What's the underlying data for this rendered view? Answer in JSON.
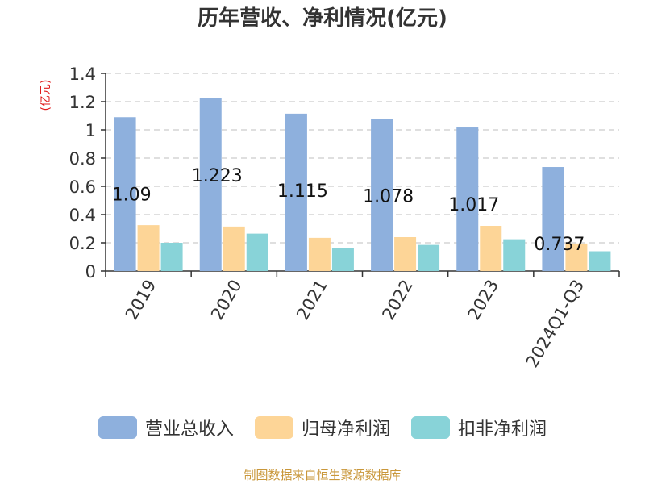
{
  "chart_data": {
    "type": "bar",
    "title": "历年营收、净利情况(亿元)",
    "unit_label": "(亿元)",
    "categories": [
      "2019",
      "2020",
      "2021",
      "2022",
      "2023",
      "2024Q1-Q3"
    ],
    "series": [
      {
        "name": "营业总收入",
        "color": "#8eb0dd",
        "values": [
          1.09,
          1.223,
          1.115,
          1.078,
          1.017,
          0.737
        ],
        "labels": [
          "1.09",
          "1.223",
          "1.115",
          "1.078",
          "1.017",
          "0.737"
        ]
      },
      {
        "name": "归母净利润",
        "color": "#fdd597",
        "values": [
          0.325,
          0.315,
          0.235,
          0.24,
          0.32,
          0.195
        ]
      },
      {
        "name": "扣非净利润",
        "color": "#88d3d8",
        "values": [
          0.2,
          0.265,
          0.165,
          0.185,
          0.225,
          0.14
        ]
      }
    ],
    "y_ticks": [
      "0",
      "0.2",
      "0.4",
      "0.6",
      "0.8",
      "1",
      "1.2",
      "1.4"
    ],
    "ylim": [
      0,
      1.4
    ],
    "grid": "horizontal dashed",
    "legend_position": "bottom"
  },
  "source": "制图数据来自恒生聚源数据库"
}
